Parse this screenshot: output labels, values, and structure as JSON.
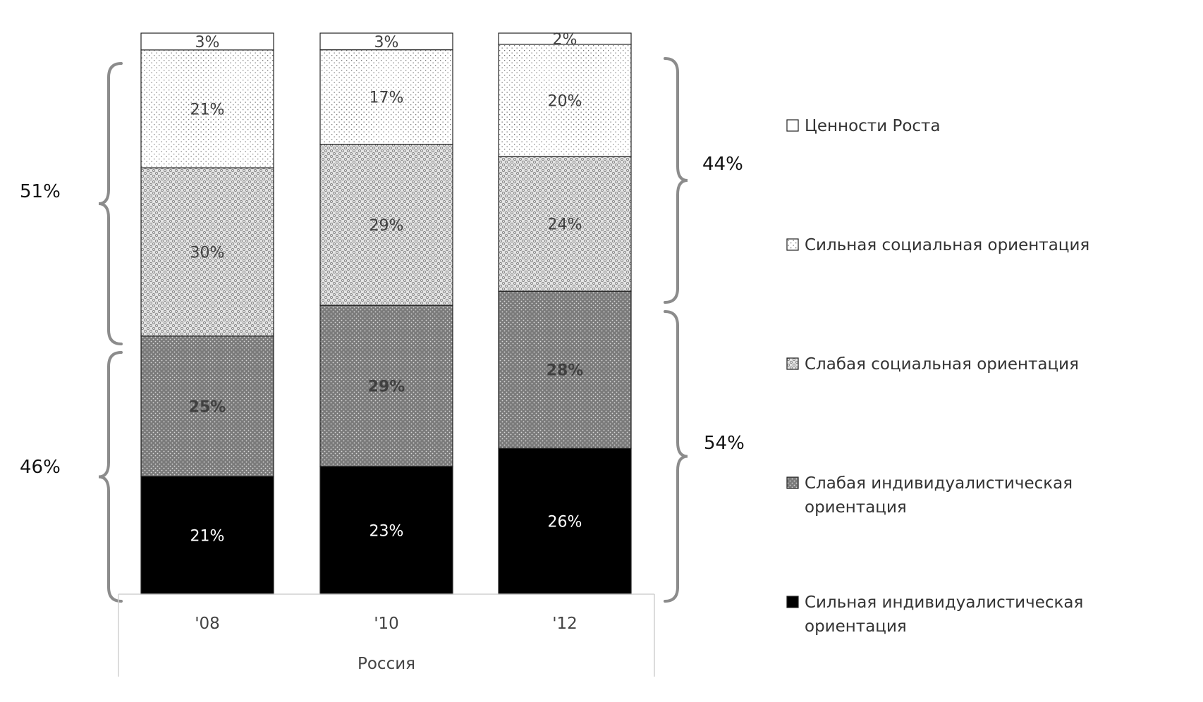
{
  "chart_data": {
    "type": "bar",
    "stacked": true,
    "group_label": "Россия",
    "categories": [
      "'08",
      "'10",
      "'12"
    ],
    "series": [
      {
        "name": "Сильная индивидуалистическая ориентация",
        "values": [
          21,
          23,
          26
        ],
        "labels": [
          "21%",
          "23%",
          "26%"
        ],
        "color": "#000000",
        "pattern": "solid"
      },
      {
        "name": "Слабая индивидуалистическая ориентация",
        "values": [
          25,
          29,
          28
        ],
        "labels": [
          "25%",
          "29%",
          "28%"
        ],
        "color": "#808080",
        "pattern": "fine-dots"
      },
      {
        "name": "Слабая социальная ориентация",
        "values": [
          30,
          29,
          24
        ],
        "labels": [
          "30%",
          "29%",
          "24%"
        ],
        "color": "#c8c8c8",
        "pattern": "checker"
      },
      {
        "name": "Сильная социальная ориентация",
        "values": [
          21,
          17,
          20
        ],
        "labels": [
          "21%",
          "17%",
          "20%"
        ],
        "color": "#f0f0f0",
        "pattern": "sparse-dots"
      },
      {
        "name": "Ценности Роста",
        "values": [
          3,
          3,
          2
        ],
        "labels": [
          "3%",
          "3%",
          "2%"
        ],
        "color": "#ffffff",
        "pattern": "solid"
      }
    ],
    "legend": {
      "position": "right",
      "order": [
        "Ценности Роста",
        "Сильная социальная ориентация",
        "Слабая социальная ориентация",
        "Слабая индивидуалистическая ориентация",
        "Сильная индивидуалистическая ориентация"
      ]
    },
    "brackets": [
      {
        "side": "left",
        "label": "51%"
      },
      {
        "side": "left",
        "label": "46%"
      },
      {
        "side": "right",
        "label": "44%"
      },
      {
        "side": "right",
        "label": "54%"
      }
    ],
    "ylim": [
      0,
      100
    ],
    "grid": false
  }
}
